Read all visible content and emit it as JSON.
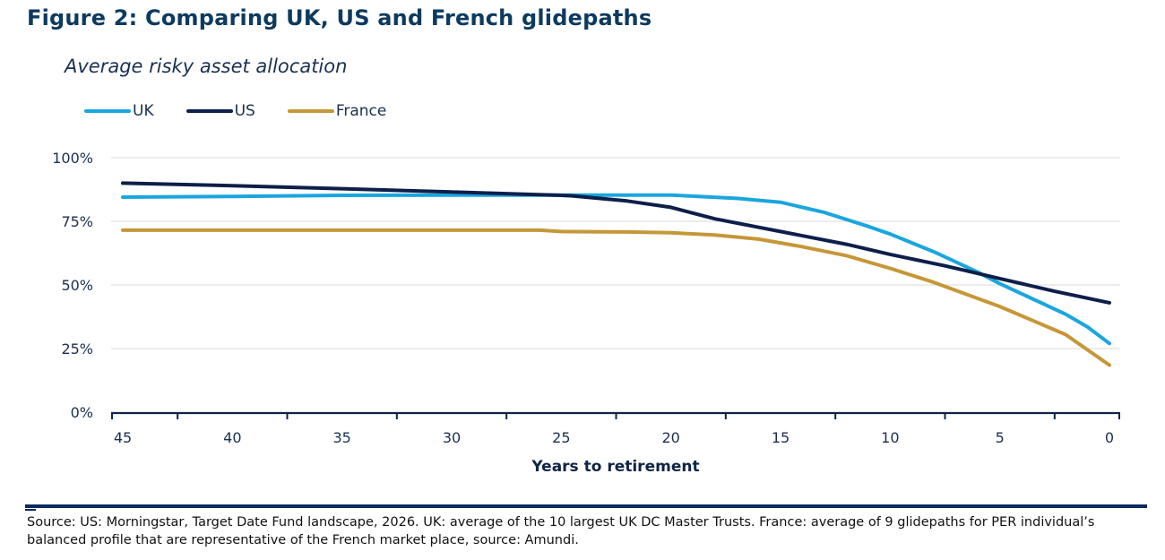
{
  "figure": {
    "title": "Figure 2:  Comparing UK, US and French glidepaths",
    "subtitle": "Average risky asset allocation",
    "source": "Source: US: Morningstar, Target Date Fund landscape, 2026. UK: average of the 10 largest UK DC Master Trusts. France: average of 9 glidepaths for PER individual’s balanced profile that are representative of the French market place, source: Amundi."
  },
  "chart_data": {
    "type": "line",
    "xlabel": "Years to retirement",
    "ylabel": "",
    "x_reversed": true,
    "xlim": [
      45,
      0
    ],
    "ylim": [
      0,
      100
    ],
    "x_ticks": [
      45,
      40,
      35,
      30,
      25,
      20,
      15,
      10,
      5,
      0
    ],
    "y_ticks": [
      0,
      25,
      50,
      75,
      100
    ],
    "y_tick_labels": [
      "0%",
      "25%",
      "50%",
      "75%",
      "100%"
    ],
    "grid": "horizontal",
    "legend": "top-left",
    "series": [
      {
        "name": "UK",
        "color": "#1aa6de",
        "points": [
          [
            45,
            84.5
          ],
          [
            40,
            84.8
          ],
          [
            35,
            85.2
          ],
          [
            30,
            85.3
          ],
          [
            25,
            85.3
          ],
          [
            20,
            85.3
          ],
          [
            17,
            84
          ],
          [
            15,
            82.5
          ],
          [
            13,
            78.5
          ],
          [
            11,
            73
          ],
          [
            10,
            70
          ],
          [
            8,
            63
          ],
          [
            6,
            55
          ],
          [
            5,
            50.5
          ],
          [
            4,
            46.5
          ],
          [
            2,
            38.5
          ],
          [
            1,
            33.5
          ],
          [
            0,
            27
          ]
        ]
      },
      {
        "name": "US",
        "color": "#0d1f4a",
        "points": [
          [
            45,
            90
          ],
          [
            40,
            89
          ],
          [
            35,
            87.8
          ],
          [
            30,
            86.5
          ],
          [
            25,
            85.2
          ],
          [
            24.5,
            85
          ],
          [
            22,
            83
          ],
          [
            20,
            80.5
          ],
          [
            18,
            76
          ],
          [
            15,
            71
          ],
          [
            12,
            66
          ],
          [
            10,
            62
          ],
          [
            7.5,
            57.5
          ],
          [
            6,
            54.5
          ],
          [
            5,
            52.5
          ],
          [
            2.5,
            47.5
          ],
          [
            0,
            43
          ]
        ]
      },
      {
        "name": "France",
        "color": "#c69738",
        "points": [
          [
            45,
            71.5
          ],
          [
            35,
            71.5
          ],
          [
            26,
            71.5
          ],
          [
            25,
            71
          ],
          [
            22,
            70.8
          ],
          [
            20,
            70.5
          ],
          [
            18,
            69.6
          ],
          [
            16,
            68
          ],
          [
            14,
            65
          ],
          [
            12,
            61.5
          ],
          [
            10,
            56.5
          ],
          [
            8,
            51
          ],
          [
            5,
            41.5
          ],
          [
            2,
            30.5
          ],
          [
            0,
            18.5
          ]
        ]
      }
    ]
  }
}
